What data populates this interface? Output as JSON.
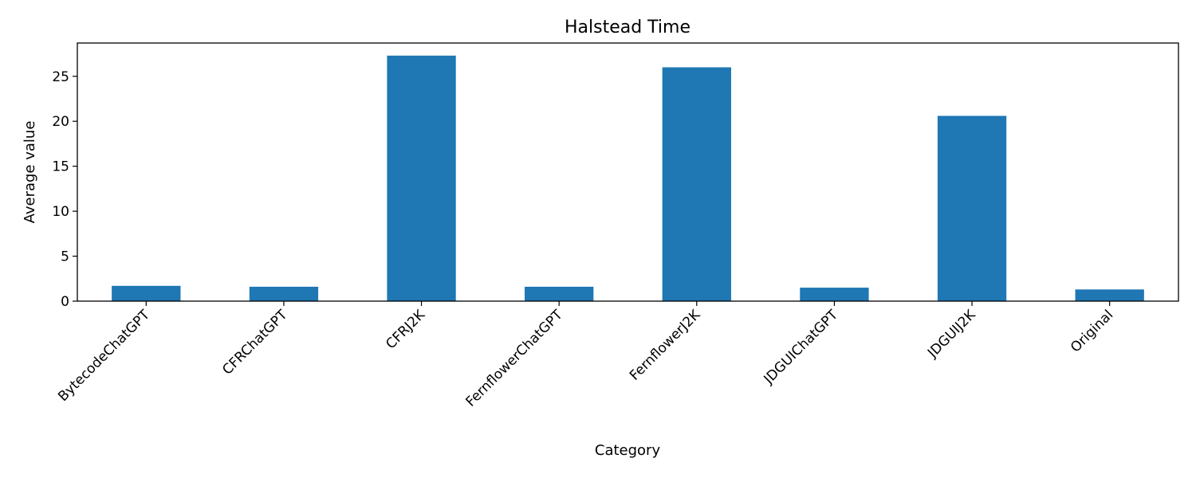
{
  "chart_data": {
    "type": "bar",
    "title": "Halstead Time",
    "xlabel": "Category",
    "ylabel": "Average value",
    "categories": [
      "BytecodeChatGPT",
      "CFRChatGPT",
      "CFRJ2K",
      "FernflowerChatGPT",
      "FernflowerJ2K",
      "JDGUIChatGPT",
      "JDGUIJ2K",
      "Original"
    ],
    "values": [
      1.7,
      1.6,
      27.3,
      1.6,
      26.0,
      1.5,
      20.6,
      1.3
    ],
    "ylim": [
      0,
      28.7
    ],
    "yticks": [
      0,
      5,
      10,
      15,
      20,
      25
    ],
    "grid": false,
    "legend": "none",
    "bar_color": "#1f77b4"
  }
}
